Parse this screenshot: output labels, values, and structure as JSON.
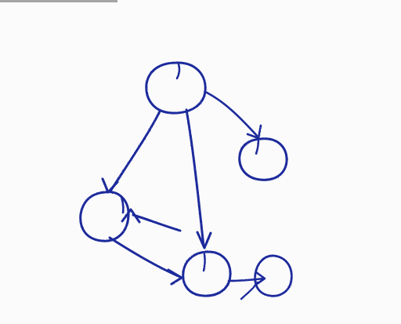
{
  "diagram": {
    "type": "hand-drawn directed graph",
    "ink_color": "#1f2a9b",
    "paper_color": "#fbfbfc",
    "nodes": [
      {
        "id": "n1"
      },
      {
        "id": "n2"
      },
      {
        "id": "n3"
      },
      {
        "id": "n4"
      },
      {
        "id": "n5"
      }
    ],
    "edges": [
      {
        "from": "n1",
        "to": "n2"
      },
      {
        "from": "n1",
        "to": "n3"
      },
      {
        "from": "n1",
        "to": "n4"
      },
      {
        "from": "n3",
        "to": "n2"
      },
      {
        "from": "n2",
        "to": "n4"
      },
      {
        "from": "n4",
        "to": "n5"
      }
    ]
  }
}
